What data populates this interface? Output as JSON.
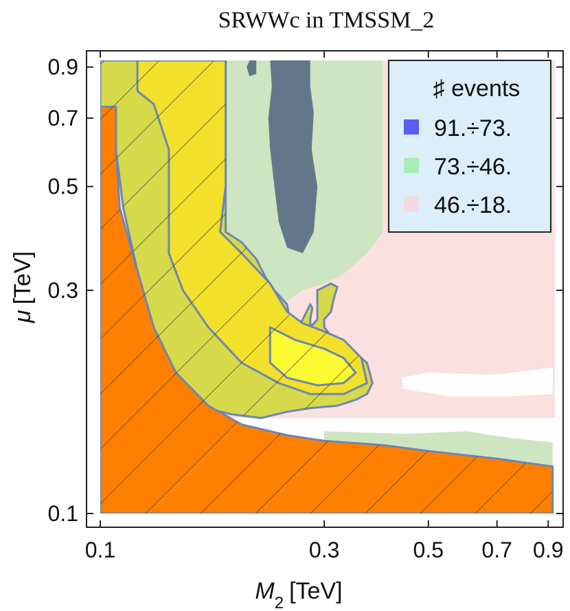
{
  "chart_data": {
    "type": "heatmap",
    "title": "SRWWc in TMSSM_2",
    "xlabel_symbol": "M",
    "xlabel_sub": "2",
    "xlabel_unit": "[TeV]",
    "ylabel_symbol": "μ",
    "ylabel_unit": "[TeV]",
    "x_scale": "log",
    "y_scale": "log",
    "xlim": [
      0.1,
      0.93
    ],
    "ylim": [
      0.1,
      0.93
    ],
    "x_ticks": [
      {
        "value": 0.1,
        "label": "0.1"
      },
      {
        "value": 0.3,
        "label": "0.3"
      },
      {
        "value": 0.5,
        "label": "0.5"
      },
      {
        "value": 0.7,
        "label": "0.7"
      },
      {
        "value": 0.9,
        "label": "0.9"
      }
    ],
    "y_ticks": [
      {
        "value": 0.1,
        "label": "0.1"
      },
      {
        "value": 0.3,
        "label": "0.3"
      },
      {
        "value": 0.5,
        "label": "0.5"
      },
      {
        "value": 0.7,
        "label": "0.7"
      },
      {
        "value": 0.9,
        "label": "0.9"
      }
    ],
    "legend": {
      "title": "♯ events",
      "position": "top-right",
      "entries": [
        {
          "label": "91.÷73.",
          "color": "#5a5cf2"
        },
        {
          "label": "73.÷46.",
          "color": "#a8efb4"
        },
        {
          "label": "46.÷18.",
          "color": "#f2d9e2"
        }
      ]
    },
    "regions": [
      {
        "name": "background-46-18",
        "fill": "#fbe0e0",
        "polygon": [
          [
            0.1,
            0.93
          ],
          [
            0.93,
            0.93
          ],
          [
            0.93,
            0.16
          ],
          [
            0.1,
            0.16
          ]
        ]
      },
      {
        "name": "band-73-46",
        "fill": "#cde6c1",
        "polygon": [
          [
            0.1,
            0.93
          ],
          [
            0.4,
            0.93
          ],
          [
            0.4,
            0.4
          ],
          [
            0.37,
            0.36
          ],
          [
            0.33,
            0.325
          ],
          [
            0.3,
            0.31
          ],
          [
            0.27,
            0.3
          ],
          [
            0.25,
            0.285
          ],
          [
            0.2,
            0.29
          ],
          [
            0.17,
            0.3
          ],
          [
            0.145,
            0.35
          ],
          [
            0.12,
            0.45
          ],
          [
            0.1,
            0.55
          ]
        ]
      },
      {
        "name": "lower-73-46",
        "fill": "#cde6c1",
        "polygon": [
          [
            0.3,
            0.15
          ],
          [
            0.45,
            0.148
          ],
          [
            0.6,
            0.15
          ],
          [
            0.75,
            0.145
          ],
          [
            0.92,
            0.142
          ],
          [
            0.92,
            0.123
          ],
          [
            0.7,
            0.128
          ],
          [
            0.5,
            0.13
          ],
          [
            0.35,
            0.135
          ],
          [
            0.3,
            0.14
          ]
        ]
      },
      {
        "name": "peak-91-73",
        "fill": "#62788a",
        "polygon": [
          [
            0.23,
            0.93
          ],
          [
            0.28,
            0.93
          ],
          [
            0.28,
            0.82
          ],
          [
            0.285,
            0.72
          ],
          [
            0.282,
            0.6
          ],
          [
            0.29,
            0.5
          ],
          [
            0.285,
            0.4
          ],
          [
            0.27,
            0.36
          ],
          [
            0.25,
            0.37
          ],
          [
            0.24,
            0.42
          ],
          [
            0.235,
            0.5
          ],
          [
            0.23,
            0.6
          ],
          [
            0.228,
            0.7
          ],
          [
            0.232,
            0.82
          ]
        ]
      },
      {
        "name": "peak-91-73-small",
        "fill": "#62788a",
        "polygon": [
          [
            0.208,
            0.93
          ],
          [
            0.215,
            0.93
          ],
          [
            0.215,
            0.87
          ],
          [
            0.208,
            0.86
          ],
          [
            0.205,
            0.9
          ]
        ]
      },
      {
        "name": "white-gap",
        "fill": "#ffffff",
        "polygon": [
          [
            0.5,
            0.2
          ],
          [
            0.7,
            0.198
          ],
          [
            0.92,
            0.205
          ],
          [
            0.92,
            0.18
          ],
          [
            0.75,
            0.178
          ],
          [
            0.55,
            0.178
          ],
          [
            0.44,
            0.185
          ],
          [
            0.44,
            0.195
          ]
        ]
      },
      {
        "name": "excluded-region-fill",
        "fill": "#d5d94a",
        "polygon": [
          [
            0.1,
            0.93
          ],
          [
            0.185,
            0.93
          ],
          [
            0.185,
            0.4
          ],
          [
            0.2,
            0.38
          ],
          [
            0.215,
            0.35
          ],
          [
            0.225,
            0.32
          ],
          [
            0.235,
            0.3
          ],
          [
            0.25,
            0.28
          ],
          [
            0.255,
            0.25
          ],
          [
            0.26,
            0.245
          ],
          [
            0.265,
            0.25
          ],
          [
            0.275,
            0.27
          ],
          [
            0.28,
            0.28
          ],
          [
            0.283,
            0.275
          ],
          [
            0.28,
            0.26
          ],
          [
            0.28,
            0.25
          ],
          [
            0.29,
            0.26
          ],
          [
            0.29,
            0.3
          ],
          [
            0.31,
            0.31
          ],
          [
            0.32,
            0.305
          ],
          [
            0.315,
            0.29
          ],
          [
            0.31,
            0.27
          ],
          [
            0.3,
            0.26
          ],
          [
            0.3,
            0.25
          ],
          [
            0.31,
            0.24
          ],
          [
            0.33,
            0.23
          ],
          [
            0.35,
            0.22
          ],
          [
            0.37,
            0.21
          ],
          [
            0.38,
            0.19
          ],
          [
            0.37,
            0.18
          ],
          [
            0.35,
            0.175
          ],
          [
            0.32,
            0.17
          ],
          [
            0.28,
            0.168
          ],
          [
            0.25,
            0.165
          ],
          [
            0.22,
            0.16
          ],
          [
            0.19,
            0.163
          ],
          [
            0.16,
            0.17
          ],
          [
            0.14,
            0.2
          ],
          [
            0.13,
            0.25
          ],
          [
            0.12,
            0.33
          ],
          [
            0.112,
            0.45
          ],
          [
            0.108,
            0.6
          ],
          [
            0.108,
            0.74
          ],
          [
            0.1,
            0.74
          ]
        ]
      },
      {
        "name": "excluded-yellow",
        "fill": "#f2e02a",
        "polygon": [
          [
            0.12,
            0.93
          ],
          [
            0.185,
            0.93
          ],
          [
            0.185,
            0.5
          ],
          [
            0.18,
            0.4
          ],
          [
            0.2,
            0.36
          ],
          [
            0.23,
            0.31
          ],
          [
            0.25,
            0.27
          ],
          [
            0.27,
            0.255
          ],
          [
            0.3,
            0.245
          ],
          [
            0.33,
            0.235
          ],
          [
            0.36,
            0.215
          ],
          [
            0.37,
            0.19
          ],
          [
            0.33,
            0.18
          ],
          [
            0.28,
            0.18
          ],
          [
            0.24,
            0.19
          ],
          [
            0.2,
            0.21
          ],
          [
            0.17,
            0.25
          ],
          [
            0.15,
            0.3
          ],
          [
            0.14,
            0.36
          ],
          [
            0.14,
            0.45
          ],
          [
            0.14,
            0.6
          ],
          [
            0.13,
            0.75
          ],
          [
            0.12,
            0.8
          ]
        ]
      },
      {
        "name": "excluded-bright-yellow",
        "fill": "#fcfa33",
        "polygon": [
          [
            0.23,
            0.25
          ],
          [
            0.26,
            0.235
          ],
          [
            0.3,
            0.225
          ],
          [
            0.33,
            0.215
          ],
          [
            0.35,
            0.2
          ],
          [
            0.33,
            0.19
          ],
          [
            0.29,
            0.188
          ],
          [
            0.25,
            0.195
          ],
          [
            0.23,
            0.21
          ]
        ]
      },
      {
        "name": "theory-excluded-orange",
        "fill": "#ff8000",
        "polygon": [
          [
            0.1,
            0.1
          ],
          [
            0.1,
            0.74
          ],
          [
            0.108,
            0.74
          ],
          [
            0.108,
            0.6
          ],
          [
            0.11,
            0.45
          ],
          [
            0.12,
            0.33
          ],
          [
            0.13,
            0.25
          ],
          [
            0.145,
            0.2
          ],
          [
            0.17,
            0.17
          ],
          [
            0.2,
            0.155
          ],
          [
            0.25,
            0.147
          ],
          [
            0.3,
            0.143
          ],
          [
            0.4,
            0.14
          ],
          [
            0.5,
            0.136
          ],
          [
            0.7,
            0.131
          ],
          [
            0.92,
            0.126
          ],
          [
            0.92,
            0.1
          ]
        ]
      }
    ]
  }
}
